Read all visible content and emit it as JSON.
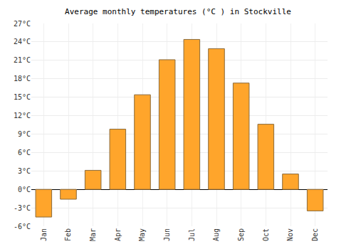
{
  "chart_data": {
    "type": "bar",
    "title": "Average monthly temperatures (°C ) in Stockville",
    "categories": [
      "Jan",
      "Feb",
      "Mar",
      "Apr",
      "May",
      "Jun",
      "Jul",
      "Aug",
      "Sep",
      "Oct",
      "Nov",
      "Dec"
    ],
    "values": [
      -4.5,
      -1.6,
      3.1,
      9.8,
      15.4,
      21.1,
      24.4,
      22.9,
      17.3,
      10.6,
      2.5,
      -3.5
    ],
    "color": "#ffa52b",
    "ylim": [
      -6,
      27
    ],
    "yticks": [
      {
        "value": -6,
        "label": "-6°C"
      },
      {
        "value": -3,
        "label": "-3°C"
      },
      {
        "value": 0,
        "label": "0°C"
      },
      {
        "value": 3,
        "label": "3°C"
      },
      {
        "value": 6,
        "label": "6°C"
      },
      {
        "value": 9,
        "label": "9°C"
      },
      {
        "value": 12,
        "label": "12°C"
      },
      {
        "value": 15,
        "label": "15°C"
      },
      {
        "value": 18,
        "label": "18°C"
      },
      {
        "value": 21,
        "label": "21°C"
      },
      {
        "value": 24,
        "label": "24°C"
      },
      {
        "value": 27,
        "label": "27°C"
      }
    ],
    "grid": true
  }
}
